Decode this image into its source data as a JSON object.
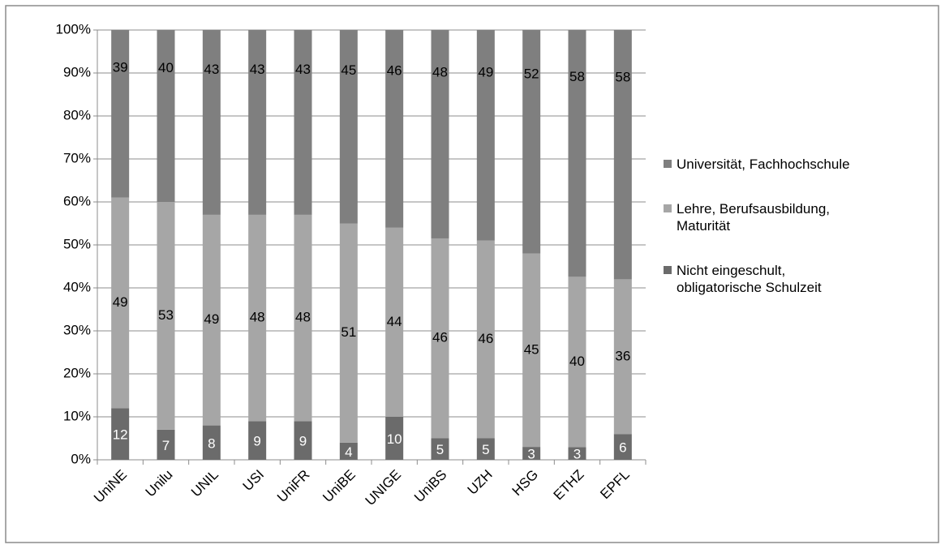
{
  "chart_data": {
    "type": "bar",
    "stacked": "percent",
    "categories": [
      "UniNE",
      "Unilu",
      "UNIL",
      "USI",
      "UniFR",
      "UniBE",
      "UNIGE",
      "UniBS",
      "UZH",
      "HSG",
      "ETHZ",
      "EPFL"
    ],
    "series": [
      {
        "name": "Nicht eingeschult, obligatorische Schulzeit",
        "color": "#6b6b6b",
        "label_color": "#ffffff",
        "values": [
          12,
          7,
          8,
          9,
          9,
          4,
          10,
          5,
          5,
          3,
          3,
          6
        ]
      },
      {
        "name": "Lehre, Berufsausbildung, Maturität",
        "color": "#a6a6a6",
        "label_color": "#000000",
        "values": [
          49,
          53,
          49,
          48,
          48,
          51,
          44,
          46,
          46,
          45,
          40,
          36
        ]
      },
      {
        "name": "Universität, Fachhochschule",
        "color": "#7f7f7f",
        "label_color": "#000000",
        "values": [
          39,
          40,
          43,
          43,
          43,
          45,
          46,
          48,
          49,
          52,
          58,
          58
        ]
      }
    ],
    "ylim": [
      0,
      100
    ],
    "yticks": [
      {
        "value": 0,
        "label": "0%"
      },
      {
        "value": 10,
        "label": "10%"
      },
      {
        "value": 20,
        "label": "20%"
      },
      {
        "value": 30,
        "label": "30%"
      },
      {
        "value": 40,
        "label": "40%"
      },
      {
        "value": 50,
        "label": "50%"
      },
      {
        "value": 60,
        "label": "60%"
      },
      {
        "value": 70,
        "label": "70%"
      },
      {
        "value": 80,
        "label": "80%"
      },
      {
        "value": 90,
        "label": "90%"
      },
      {
        "value": 100,
        "label": "100%"
      }
    ],
    "grid": true,
    "legend": "right"
  }
}
